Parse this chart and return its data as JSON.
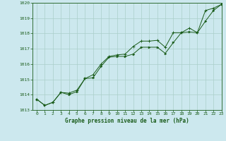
{
  "title": "Graphe pression niveau de la mer (hPa)",
  "background_color": "#cce8ee",
  "grid_color": "#aacfca",
  "line_color": "#1a5c1a",
  "axis_bg": "#cce8ee",
  "xlim": [
    -0.5,
    23
  ],
  "ylim": [
    1013,
    1020
  ],
  "yticks": [
    1013,
    1014,
    1015,
    1016,
    1017,
    1018,
    1019,
    1020
  ],
  "xticks": [
    0,
    1,
    2,
    3,
    4,
    5,
    6,
    7,
    8,
    9,
    10,
    11,
    12,
    13,
    14,
    15,
    16,
    17,
    18,
    19,
    20,
    21,
    22,
    23
  ],
  "series1_x": [
    0,
    1,
    2,
    3,
    4,
    5,
    6,
    7,
    8,
    9,
    10,
    11,
    12,
    13,
    14,
    15,
    16,
    17,
    18,
    19,
    20,
    21,
    22,
    23
  ],
  "series1_y": [
    1013.7,
    1013.3,
    1013.5,
    1014.15,
    1014.1,
    1014.3,
    1015.05,
    1015.3,
    1016.0,
    1016.5,
    1016.6,
    1016.65,
    1017.15,
    1017.5,
    1017.5,
    1017.55,
    1017.1,
    1018.05,
    1018.05,
    1018.35,
    1018.05,
    1019.5,
    1019.65,
    1019.9
  ],
  "series2_x": [
    0,
    1,
    2,
    3,
    4,
    5,
    6,
    7,
    8,
    9,
    10,
    11,
    12,
    13,
    14,
    15,
    16,
    17,
    18,
    19,
    20,
    21,
    22,
    23
  ],
  "series2_y": [
    1013.7,
    1013.3,
    1013.5,
    1014.15,
    1014.0,
    1014.2,
    1015.05,
    1015.1,
    1015.85,
    1016.45,
    1016.5,
    1016.5,
    1016.65,
    1017.1,
    1017.1,
    1017.1,
    1016.7,
    1017.4,
    1018.05,
    1018.1,
    1018.05,
    1018.8,
    1019.5,
    1019.9
  ]
}
